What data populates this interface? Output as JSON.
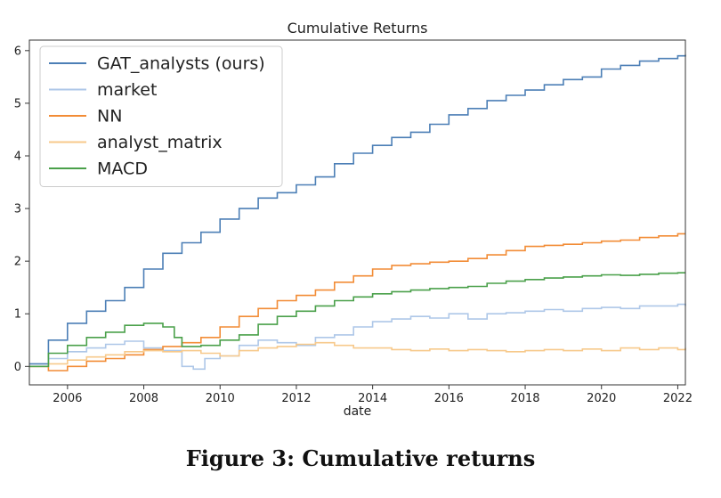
{
  "caption": "Figure 3: Cumulative returns",
  "chart_data": {
    "type": "line",
    "title": "Cumulative Returns",
    "xlabel": "date",
    "ylabel": "",
    "xlim": [
      2005.0,
      2022.2
    ],
    "ylim": [
      -0.35,
      6.2
    ],
    "xticks": [
      2006,
      2008,
      2010,
      2012,
      2014,
      2016,
      2018,
      2020,
      2022
    ],
    "yticks": [
      0,
      1,
      2,
      3,
      4,
      5,
      6
    ],
    "grid": false,
    "legend_position": "top-left",
    "series": [
      {
        "name": "GAT_analysts (ours)",
        "color": "#4c7fb6",
        "x": [
          2005.0,
          2005.5,
          2006.0,
          2006.5,
          2007.0,
          2007.5,
          2008.0,
          2008.5,
          2009.0,
          2009.5,
          2010.0,
          2010.5,
          2011.0,
          2011.5,
          2012.0,
          2012.5,
          2013.0,
          2013.5,
          2014.0,
          2014.5,
          2015.0,
          2015.5,
          2016.0,
          2016.5,
          2017.0,
          2017.5,
          2018.0,
          2018.5,
          2019.0,
          2019.5,
          2020.0,
          2020.5,
          2021.0,
          2021.5,
          2022.0,
          2022.2
        ],
        "y": [
          0.05,
          0.5,
          0.82,
          1.05,
          1.25,
          1.5,
          1.85,
          2.15,
          2.35,
          2.55,
          2.8,
          3.0,
          3.2,
          3.3,
          3.45,
          3.6,
          3.85,
          4.05,
          4.2,
          4.35,
          4.45,
          4.6,
          4.78,
          4.9,
          5.05,
          5.15,
          5.25,
          5.35,
          5.45,
          5.5,
          5.65,
          5.72,
          5.8,
          5.85,
          5.9,
          5.92
        ]
      },
      {
        "name": "market",
        "color": "#aec7e8",
        "x": [
          2005.0,
          2005.5,
          2006.0,
          2006.5,
          2007.0,
          2007.5,
          2008.0,
          2008.5,
          2009.0,
          2009.3,
          2009.6,
          2010.0,
          2010.5,
          2011.0,
          2011.5,
          2012.0,
          2012.5,
          2013.0,
          2013.5,
          2014.0,
          2014.5,
          2015.0,
          2015.5,
          2016.0,
          2016.5,
          2017.0,
          2017.5,
          2018.0,
          2018.5,
          2019.0,
          2019.5,
          2020.0,
          2020.5,
          2021.0,
          2021.5,
          2022.0,
          2022.2
        ],
        "y": [
          0.0,
          0.15,
          0.28,
          0.35,
          0.42,
          0.48,
          0.35,
          0.3,
          0.0,
          -0.05,
          0.15,
          0.2,
          0.4,
          0.5,
          0.45,
          0.4,
          0.55,
          0.6,
          0.75,
          0.85,
          0.9,
          0.95,
          0.92,
          1.0,
          0.9,
          1.0,
          1.02,
          1.05,
          1.08,
          1.05,
          1.1,
          1.12,
          1.1,
          1.15,
          1.15,
          1.18,
          1.15
        ]
      },
      {
        "name": "NN",
        "color": "#f28c36",
        "x": [
          2005.0,
          2005.5,
          2006.0,
          2006.5,
          2007.0,
          2007.5,
          2008.0,
          2008.5,
          2009.0,
          2009.5,
          2010.0,
          2010.5,
          2011.0,
          2011.5,
          2012.0,
          2012.5,
          2013.0,
          2013.5,
          2014.0,
          2014.5,
          2015.0,
          2015.5,
          2016.0,
          2016.5,
          2017.0,
          2017.5,
          2018.0,
          2018.5,
          2019.0,
          2019.5,
          2020.0,
          2020.5,
          2021.0,
          2021.5,
          2022.0,
          2022.2
        ],
        "y": [
          0.0,
          -0.08,
          0.0,
          0.1,
          0.15,
          0.22,
          0.32,
          0.38,
          0.45,
          0.55,
          0.75,
          0.95,
          1.1,
          1.25,
          1.35,
          1.45,
          1.6,
          1.72,
          1.85,
          1.92,
          1.95,
          1.98,
          2.0,
          2.05,
          2.12,
          2.2,
          2.28,
          2.3,
          2.32,
          2.35,
          2.38,
          2.4,
          2.45,
          2.48,
          2.52,
          2.52
        ]
      },
      {
        "name": "analyst_matrix",
        "color": "#f7c98b",
        "x": [
          2005.0,
          2005.5,
          2006.0,
          2006.5,
          2007.0,
          2007.5,
          2008.0,
          2008.5,
          2009.0,
          2009.5,
          2010.0,
          2010.5,
          2011.0,
          2011.5,
          2012.0,
          2012.5,
          2013.0,
          2013.5,
          2014.0,
          2014.5,
          2015.0,
          2015.5,
          2016.0,
          2016.5,
          2017.0,
          2017.5,
          2018.0,
          2018.5,
          2019.0,
          2019.5,
          2020.0,
          2020.5,
          2021.0,
          2021.5,
          2022.0,
          2022.2
        ],
        "y": [
          0.0,
          0.05,
          0.12,
          0.18,
          0.22,
          0.28,
          0.3,
          0.28,
          0.3,
          0.25,
          0.2,
          0.3,
          0.35,
          0.38,
          0.42,
          0.45,
          0.4,
          0.35,
          0.35,
          0.32,
          0.3,
          0.33,
          0.3,
          0.32,
          0.3,
          0.28,
          0.3,
          0.32,
          0.3,
          0.33,
          0.3,
          0.35,
          0.32,
          0.35,
          0.32,
          0.35
        ]
      },
      {
        "name": "MACD",
        "color": "#4aa04a",
        "x": [
          2005.0,
          2005.5,
          2006.0,
          2006.5,
          2007.0,
          2007.5,
          2008.0,
          2008.5,
          2008.8,
          2009.0,
          2009.5,
          2010.0,
          2010.5,
          2011.0,
          2011.5,
          2012.0,
          2012.5,
          2013.0,
          2013.5,
          2014.0,
          2014.5,
          2015.0,
          2015.5,
          2016.0,
          2016.5,
          2017.0,
          2017.5,
          2018.0,
          2018.5,
          2019.0,
          2019.5,
          2020.0,
          2020.5,
          2021.0,
          2021.5,
          2022.0,
          2022.2
        ],
        "y": [
          0.0,
          0.25,
          0.4,
          0.55,
          0.65,
          0.78,
          0.82,
          0.75,
          0.55,
          0.38,
          0.4,
          0.5,
          0.6,
          0.8,
          0.95,
          1.05,
          1.15,
          1.25,
          1.32,
          1.38,
          1.42,
          1.45,
          1.48,
          1.5,
          1.52,
          1.58,
          1.62,
          1.65,
          1.68,
          1.7,
          1.72,
          1.74,
          1.73,
          1.75,
          1.77,
          1.78,
          1.78
        ]
      }
    ]
  }
}
